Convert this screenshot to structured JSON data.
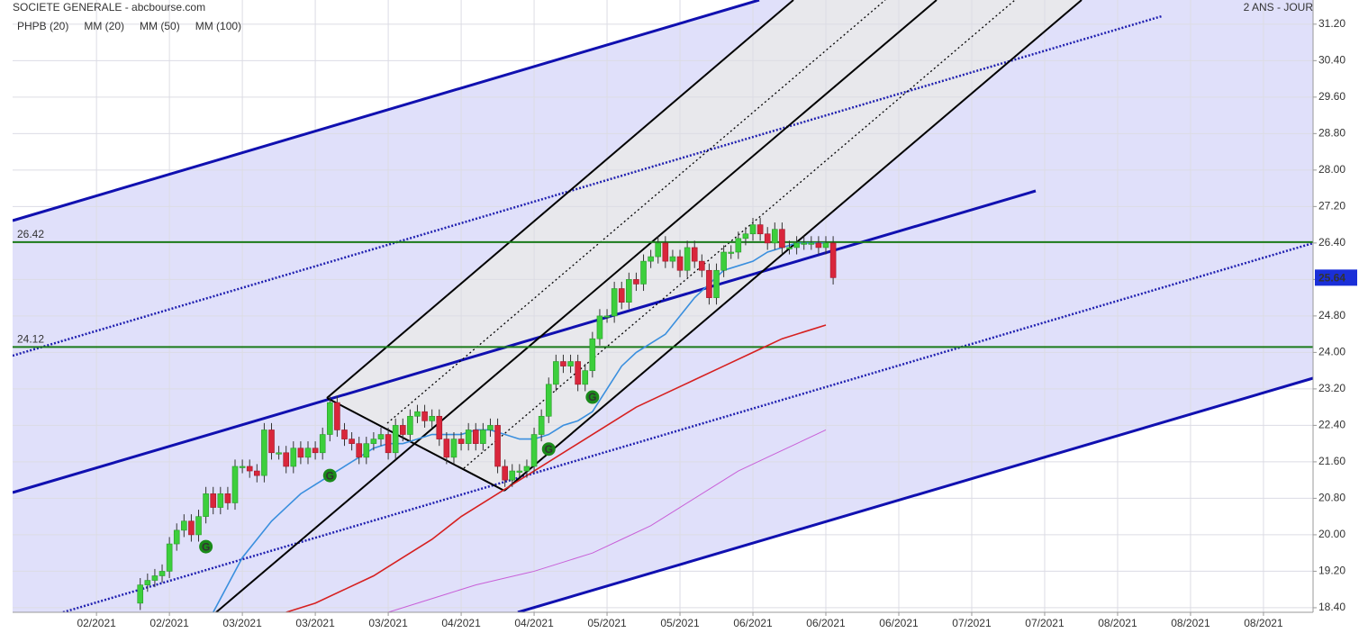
{
  "chart_data": {
    "type": "candlestick",
    "title": "SOCIETE GENERALE - abcbourse.com",
    "subtitle": "2 ANS - JOUR",
    "up_color": "#3ccf3c",
    "down_color": "#d9263b",
    "x": [
      6,
      7,
      8,
      9,
      10,
      11,
      12,
      13,
      14,
      15,
      16,
      17,
      18,
      19,
      20,
      21,
      22,
      23,
      24,
      25,
      26,
      27,
      28,
      29,
      30,
      31,
      32,
      33,
      34,
      35,
      36,
      37,
      38,
      39,
      40,
      41,
      42,
      43,
      44,
      45,
      46,
      47,
      48,
      49,
      50,
      51,
      52,
      53,
      54,
      55,
      56,
      57,
      58,
      59,
      60,
      61,
      62,
      63,
      64,
      65,
      66,
      67,
      68,
      69,
      70,
      71,
      72,
      73,
      74,
      75,
      76,
      77,
      78,
      79,
      80,
      81,
      82,
      83,
      84,
      85,
      86,
      87,
      88,
      89,
      90,
      91,
      92,
      93,
      94,
      95,
      96,
      97,
      98,
      99,
      100,
      101
    ],
    "open": [
      18.5,
      18.9,
      19.0,
      19.1,
      19.2,
      19.8,
      20.1,
      20.3,
      20.0,
      20.4,
      20.9,
      20.6,
      20.9,
      20.7,
      21.5,
      21.5,
      21.4,
      21.3,
      22.3,
      21.8,
      21.8,
      21.5,
      21.9,
      21.7,
      21.9,
      21.8,
      22.2,
      22.9,
      22.3,
      22.1,
      22.0,
      21.7,
      22.0,
      22.1,
      22.2,
      21.8,
      22.4,
      22.2,
      22.6,
      22.7,
      22.5,
      22.6,
      22.1,
      21.7,
      22.1,
      22.0,
      22.3,
      22.0,
      22.3,
      22.4,
      21.5,
      21.2,
      21.4,
      21.4,
      21.5,
      22.2,
      22.6,
      23.3,
      23.8,
      23.7,
      23.8,
      23.3,
      23.6,
      24.3,
      24.8,
      24.8,
      25.4,
      25.1,
      25.6,
      25.5,
      26.0,
      26.1,
      26.4,
      26.0,
      26.1,
      25.8,
      26.3,
      26.0,
      25.8,
      25.2,
      25.8,
      26.2,
      26.2,
      26.5,
      26.6,
      26.8,
      26.6,
      26.4,
      26.7,
      26.3,
      26.3,
      26.4,
      26.4,
      26.4,
      26.3,
      26.4
    ],
    "high": [
      19.05,
      19.15,
      19.25,
      19.35,
      19.95,
      20.25,
      20.45,
      20.45,
      20.55,
      21.05,
      21.05,
      21.05,
      21.05,
      21.65,
      21.65,
      21.65,
      21.55,
      22.45,
      22.45,
      21.95,
      21.95,
      22.05,
      22.05,
      22.05,
      22.05,
      22.35,
      23.05,
      23.05,
      22.45,
      22.25,
      22.15,
      22.15,
      22.25,
      22.35,
      22.35,
      22.55,
      22.55,
      22.75,
      22.85,
      22.85,
      22.75,
      22.75,
      22.25,
      22.25,
      22.25,
      22.45,
      22.45,
      22.45,
      22.55,
      22.55,
      21.65,
      21.55,
      21.55,
      21.65,
      22.35,
      22.75,
      23.45,
      23.95,
      23.95,
      23.95,
      23.95,
      23.75,
      24.45,
      24.95,
      24.95,
      25.55,
      25.55,
      25.75,
      25.75,
      26.15,
      26.25,
      26.55,
      26.55,
      26.25,
      26.25,
      26.45,
      26.45,
      26.15,
      25.95,
      25.95,
      26.35,
      26.35,
      26.65,
      26.75,
      26.95,
      26.95,
      26.75,
      26.85,
      26.85,
      26.45,
      26.55,
      26.55,
      26.55,
      26.55,
      26.55,
      26.55
    ],
    "low": [
      18.35,
      18.75,
      18.85,
      18.95,
      19.05,
      19.65,
      19.95,
      19.85,
      19.85,
      20.25,
      20.45,
      20.45,
      20.55,
      20.55,
      21.35,
      21.25,
      21.15,
      21.15,
      21.65,
      21.65,
      21.35,
      21.35,
      21.55,
      21.55,
      21.65,
      21.65,
      22.05,
      22.15,
      21.95,
      21.85,
      21.55,
      21.55,
      21.85,
      21.95,
      21.65,
      21.65,
      22.05,
      22.05,
      22.45,
      22.35,
      22.35,
      21.95,
      21.55,
      21.55,
      21.85,
      21.85,
      21.85,
      21.85,
      22.15,
      21.35,
      21.05,
      21.05,
      21.25,
      21.25,
      21.35,
      22.05,
      22.45,
      23.15,
      23.55,
      23.55,
      23.15,
      23.15,
      23.45,
      24.15,
      24.65,
      24.65,
      24.95,
      24.95,
      25.35,
      25.35,
      25.85,
      25.95,
      25.85,
      25.85,
      25.65,
      25.65,
      25.85,
      25.65,
      25.05,
      25.05,
      25.65,
      26.05,
      26.05,
      26.35,
      26.45,
      26.45,
      26.25,
      26.25,
      26.15,
      26.15,
      26.15,
      26.25,
      26.25,
      26.15,
      26.15,
      25.49
    ],
    "close": [
      18.9,
      19.0,
      19.1,
      19.2,
      19.8,
      20.1,
      20.3,
      20.0,
      20.4,
      20.9,
      20.6,
      20.9,
      20.7,
      21.5,
      21.5,
      21.4,
      21.3,
      22.3,
      21.8,
      21.8,
      21.5,
      21.9,
      21.7,
      21.9,
      21.8,
      22.2,
      22.9,
      22.3,
      22.1,
      22.0,
      21.7,
      22.0,
      22.1,
      22.2,
      21.8,
      22.4,
      22.2,
      22.6,
      22.7,
      22.5,
      22.6,
      22.1,
      21.7,
      22.1,
      22.0,
      22.3,
      22.0,
      22.3,
      22.4,
      21.5,
      21.2,
      21.4,
      21.4,
      21.5,
      22.2,
      22.6,
      23.3,
      23.8,
      23.7,
      23.8,
      23.3,
      23.6,
      24.3,
      24.8,
      24.8,
      25.4,
      25.1,
      25.6,
      25.5,
      26.0,
      26.1,
      26.4,
      26.0,
      26.1,
      25.8,
      26.3,
      26.0,
      25.8,
      25.2,
      25.8,
      26.2,
      26.2,
      26.5,
      26.6,
      26.8,
      26.6,
      26.4,
      26.7,
      26.3,
      26.3,
      26.4,
      26.4,
      26.4,
      26.3,
      26.4,
      25.64
    ],
    "indicator": {
      "name": "PHPB (20)",
      "color": "#1a8a1a"
    },
    "signals": {
      "label": "G",
      "x": [
        15,
        32,
        62,
        68
      ],
      "y": [
        19.74,
        21.3,
        21.88,
        23.02
      ]
    },
    "series": [
      {
        "name": "MM (20)",
        "color": "#3a8fde",
        "x": [
          16,
          18,
          20,
          22,
          24,
          26,
          28,
          30,
          32,
          34,
          36,
          38,
          40,
          42,
          44,
          46,
          48,
          50,
          52,
          54,
          56,
          58,
          60,
          62,
          64,
          66,
          68,
          70,
          72,
          74,
          76,
          78,
          80,
          82,
          84,
          86,
          88,
          90,
          92,
          94,
          96,
          98,
          100
        ],
        "values": [
          18.3,
          18.9,
          19.5,
          19.9,
          20.3,
          20.6,
          20.9,
          21.1,
          21.3,
          21.5,
          21.7,
          21.9,
          22.0,
          22.0,
          22.1,
          22.2,
          22.2,
          22.2,
          22.3,
          22.3,
          22.2,
          22.1,
          22.1,
          22.2,
          22.4,
          22.5,
          22.7,
          23.2,
          23.7,
          24.0,
          24.2,
          24.4,
          24.8,
          25.2,
          25.5,
          25.8,
          25.9,
          26.0,
          26.2,
          26.3,
          26.4,
          26.4,
          26.4
        ]
      },
      {
        "name": "MM (50)",
        "color": "#d62020",
        "x": [
          26,
          30,
          34,
          38,
          42,
          46,
          50,
          54,
          58,
          62,
          66,
          70,
          74,
          78,
          82,
          86,
          90,
          94,
          98,
          100
        ],
        "values": [
          18.3,
          18.5,
          18.8,
          19.1,
          19.5,
          19.9,
          20.4,
          20.8,
          21.2,
          21.6,
          22.0,
          22.4,
          22.8,
          23.1,
          23.4,
          23.7,
          24.0,
          24.3,
          24.5,
          24.6
        ]
      },
      {
        "name": "MM (100)",
        "color": "#c860d8",
        "x": [
          40,
          44,
          48,
          52,
          56,
          60,
          64,
          68,
          72,
          76,
          80,
          84,
          88,
          92,
          96,
          100
        ],
        "values": [
          18.3,
          18.5,
          18.7,
          18.9,
          19.05,
          19.2,
          19.4,
          19.6,
          19.9,
          20.2,
          20.6,
          21.0,
          21.4,
          21.7,
          22.0,
          22.3
        ]
      }
    ],
    "levels": [
      26.42,
      24.12
    ],
    "level_color": "#1a7a1a",
    "last_price": 25.64,
    "xlim": [
      -11.5,
      166.8
    ],
    "ylim": [
      18.3,
      31.73
    ],
    "grid": true,
    "xticks": [
      {
        "value": 0,
        "label": "02/2021"
      },
      {
        "value": 10,
        "label": "02/2021"
      },
      {
        "value": 20,
        "label": "03/2021"
      },
      {
        "value": 30,
        "label": "03/2021"
      },
      {
        "value": 40,
        "label": "03/2021"
      },
      {
        "value": 50,
        "label": "04/2021"
      },
      {
        "value": 60,
        "label": "04/2021"
      },
      {
        "value": 70,
        "label": "05/2021"
      },
      {
        "value": 80,
        "label": "05/2021"
      },
      {
        "value": 90,
        "label": "06/2021"
      },
      {
        "value": 100,
        "label": "06/2021"
      },
      {
        "value": 110,
        "label": "06/2021"
      },
      {
        "value": 120,
        "label": "07/2021"
      },
      {
        "value": 130,
        "label": "07/2021"
      },
      {
        "value": 140,
        "label": "08/2021"
      },
      {
        "value": 150,
        "label": "08/2021"
      },
      {
        "value": 160,
        "label": "08/2021"
      }
    ],
    "yticks": [
      {
        "value": 18.4,
        "label": "18.40"
      },
      {
        "value": 19.2,
        "label": "19.20"
      },
      {
        "value": 20.0,
        "label": "20.00"
      },
      {
        "value": 20.8,
        "label": "20.80"
      },
      {
        "value": 21.6,
        "label": "21.60"
      },
      {
        "value": 22.4,
        "label": "22.40"
      },
      {
        "value": 23.2,
        "label": "23.20"
      },
      {
        "value": 24.0,
        "label": "24.00"
      },
      {
        "value": 24.8,
        "label": "24.80"
      },
      {
        "value": 25.6,
        "label": "25.60"
      },
      {
        "value": 26.4,
        "label": "26.40"
      },
      {
        "value": 27.2,
        "label": "27.20"
      },
      {
        "value": 28.0,
        "label": "28.00"
      },
      {
        "value": 28.8,
        "label": "28.80"
      },
      {
        "value": 29.6,
        "label": "29.60"
      },
      {
        "value": 30.4,
        "label": "30.40"
      },
      {
        "value": 31.2,
        "label": "31.20"
      }
    ]
  }
}
